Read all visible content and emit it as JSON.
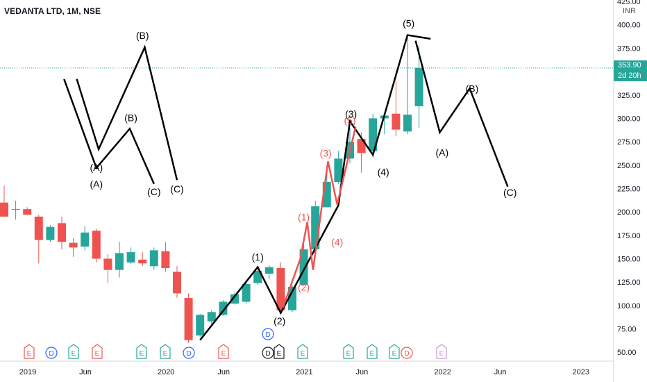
{
  "header": {
    "symbol": "VEDANTA LTD, 1M, NSE",
    "currency": "INR"
  },
  "price_tag": {
    "last_price": "353.90",
    "countdown": "2d 20h"
  },
  "colors": {
    "up": "#26a69a",
    "down": "#ef5350",
    "wave": "#000000",
    "sub_wave": "#ef5350",
    "price_line": "#26a69a",
    "earnings": "#ef5350",
    "dividend": "#2962ff"
  },
  "chart_data": {
    "type": "candlestick",
    "title": "VEDANTA LTD, 1M, NSE",
    "y_axis": {
      "ticks": [
        "425.00",
        "400.00",
        "375.00",
        "350.00",
        "325.00",
        "300.00",
        "275.00",
        "250.00",
        "225.00",
        "200.00",
        "175.00",
        "150.00",
        "125.00",
        "100.00",
        "75.00",
        "50.00"
      ],
      "min": 42,
      "max": 428
    },
    "x_axis": {
      "labels": [
        "2019",
        "Jun",
        "2020",
        "Jun",
        "2021",
        "Jun",
        "2022",
        "Jun",
        "2023"
      ]
    },
    "candles": [
      {
        "o": 210,
        "h": 228,
        "l": 195,
        "c": 195
      },
      {
        "o": 203,
        "h": 212,
        "l": 192,
        "c": 203
      },
      {
        "o": 203,
        "h": 205,
        "l": 197,
        "c": 197
      },
      {
        "o": 195,
        "h": 197,
        "l": 145,
        "c": 170
      },
      {
        "o": 170,
        "h": 186,
        "l": 168,
        "c": 184
      },
      {
        "o": 188,
        "h": 195,
        "l": 160,
        "c": 168
      },
      {
        "o": 167,
        "h": 172,
        "l": 152,
        "c": 162
      },
      {
        "o": 163,
        "h": 185,
        "l": 159,
        "c": 178
      },
      {
        "o": 180,
        "h": 182,
        "l": 146,
        "c": 150
      },
      {
        "o": 150,
        "h": 155,
        "l": 124,
        "c": 138
      },
      {
        "o": 138,
        "h": 168,
        "l": 130,
        "c": 156
      },
      {
        "o": 146,
        "h": 162,
        "l": 144,
        "c": 157
      },
      {
        "o": 149,
        "h": 157,
        "l": 142,
        "c": 145
      },
      {
        "o": 142,
        "h": 162,
        "l": 138,
        "c": 159
      },
      {
        "o": 158,
        "h": 168,
        "l": 136,
        "c": 140
      },
      {
        "o": 136,
        "h": 142,
        "l": 108,
        "c": 113
      },
      {
        "o": 108,
        "h": 113,
        "l": 60,
        "c": 63
      },
      {
        "o": 68,
        "h": 91,
        "l": 66,
        "c": 90
      },
      {
        "o": 83,
        "h": 95,
        "l": 79,
        "c": 93
      },
      {
        "o": 90,
        "h": 106,
        "l": 89,
        "c": 104
      },
      {
        "o": 102,
        "h": 114,
        "l": 101,
        "c": 112
      },
      {
        "o": 104,
        "h": 125,
        "l": 102,
        "c": 123
      },
      {
        "o": 124,
        "h": 139,
        "l": 122,
        "c": 137
      },
      {
        "o": 134,
        "h": 143,
        "l": 128,
        "c": 141
      },
      {
        "o": 140,
        "h": 146,
        "l": 92,
        "c": 95
      },
      {
        "o": 95,
        "h": 122,
        "l": 93,
        "c": 120
      },
      {
        "o": 122,
        "h": 170,
        "l": 121,
        "c": 160
      },
      {
        "o": 160,
        "h": 212,
        "l": 159,
        "c": 206
      },
      {
        "o": 205,
        "h": 243,
        "l": 205,
        "c": 232
      },
      {
        "o": 232,
        "h": 265,
        "l": 230,
        "c": 257
      },
      {
        "o": 257,
        "h": 290,
        "l": 252,
        "c": 275
      },
      {
        "o": 278,
        "h": 285,
        "l": 242,
        "c": 263
      },
      {
        "o": 265,
        "h": 305,
        "l": 258,
        "c": 300
      },
      {
        "o": 300,
        "h": 303,
        "l": 283,
        "c": 303
      },
      {
        "o": 305,
        "h": 340,
        "l": 281,
        "c": 288
      },
      {
        "o": 286,
        "h": 387,
        "l": 283,
        "c": 304
      },
      {
        "o": 313,
        "h": 378,
        "l": 290,
        "c": 354
      }
    ],
    "wave_labels": [
      "(1)",
      "(2)",
      "(3)",
      "(4)",
      "(5)",
      "(A)",
      "(B)",
      "(C)"
    ],
    "sub_wave_labels": [
      "(1)",
      "(2)",
      "(3)",
      "(4)",
      "(5)"
    ],
    "corrective_labels": [
      "(A)",
      "(B)",
      "(C)",
      "(A)",
      "(B)",
      "(C)"
    ],
    "event_markers": [
      "E",
      "D",
      "E",
      "E",
      "E",
      "E",
      "D",
      "E",
      "D",
      "E",
      "E",
      "E",
      "E",
      "E",
      "D",
      "E",
      "E"
    ]
  }
}
